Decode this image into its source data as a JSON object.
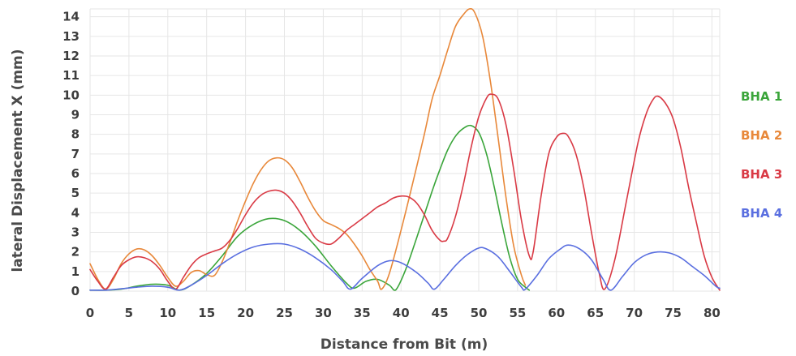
{
  "chart_data": {
    "type": "line",
    "title": "",
    "xlabel": "Distance from Bit (m)",
    "ylabel": "lateral Displacement X (mm)",
    "xlim": [
      0,
      81
    ],
    "ylim": [
      0,
      14.4
    ],
    "xticks": [
      "0",
      "5",
      "10",
      "15",
      "20",
      "25",
      "30",
      "35",
      "40",
      "45",
      "50",
      "55",
      "60",
      "65",
      "70",
      "75",
      "80"
    ],
    "yticks": [
      "0",
      "1",
      "2",
      "3",
      "4",
      "5",
      "6",
      "7",
      "8",
      "9",
      "10",
      "11",
      "12",
      "13",
      "14"
    ],
    "grid": true,
    "legend_position": "right",
    "series": [
      {
        "name": "BHA 1",
        "color": "#3aa53a",
        "points": [
          [
            0,
            0.05
          ],
          [
            2,
            0.05
          ],
          [
            4,
            0.1
          ],
          [
            6,
            0.25
          ],
          [
            8,
            0.35
          ],
          [
            10,
            0.3
          ],
          [
            11.5,
            0.05
          ],
          [
            13,
            0.3
          ],
          [
            15,
            0.9
          ],
          [
            17,
            1.8
          ],
          [
            19,
            2.8
          ],
          [
            21,
            3.4
          ],
          [
            23,
            3.7
          ],
          [
            25,
            3.6
          ],
          [
            27,
            3.1
          ],
          [
            29,
            2.3
          ],
          [
            31,
            1.3
          ],
          [
            33,
            0.4
          ],
          [
            34,
            0.15
          ],
          [
            35.5,
            0.5
          ],
          [
            37,
            0.6
          ],
          [
            38.5,
            0.3
          ],
          [
            39.3,
            0.05
          ],
          [
            40.5,
            1.0
          ],
          [
            42,
            2.7
          ],
          [
            44,
            5.1
          ],
          [
            45,
            6.2
          ],
          [
            46,
            7.2
          ],
          [
            47,
            7.9
          ],
          [
            48,
            8.3
          ],
          [
            49,
            8.45
          ],
          [
            50,
            8.1
          ],
          [
            51,
            7.0
          ],
          [
            52,
            5.3
          ],
          [
            53,
            3.4
          ],
          [
            54,
            1.7
          ],
          [
            55,
            0.6
          ],
          [
            56,
            0.2
          ],
          [
            56.5,
            0.05
          ]
        ]
      },
      {
        "name": "BHA 2",
        "color": "#e8883a",
        "points": [
          [
            0,
            1.4
          ],
          [
            1,
            0.6
          ],
          [
            2,
            0.1
          ],
          [
            3,
            0.6
          ],
          [
            4,
            1.4
          ],
          [
            5,
            1.9
          ],
          [
            6,
            2.15
          ],
          [
            7,
            2.1
          ],
          [
            8,
            1.8
          ],
          [
            9,
            1.3
          ],
          [
            10,
            0.7
          ],
          [
            11,
            0.25
          ],
          [
            12,
            0.5
          ],
          [
            13,
            0.95
          ],
          [
            14,
            1.05
          ],
          [
            15,
            0.85
          ],
          [
            16,
            0.8
          ],
          [
            17,
            1.5
          ],
          [
            18,
            2.5
          ],
          [
            19,
            3.6
          ],
          [
            20,
            4.6
          ],
          [
            21,
            5.5
          ],
          [
            22,
            6.2
          ],
          [
            23,
            6.65
          ],
          [
            24,
            6.8
          ],
          [
            25,
            6.7
          ],
          [
            26,
            6.3
          ],
          [
            27,
            5.6
          ],
          [
            28,
            4.8
          ],
          [
            29,
            4.1
          ],
          [
            30,
            3.6
          ],
          [
            31,
            3.4
          ],
          [
            32,
            3.2
          ],
          [
            33,
            2.9
          ],
          [
            34,
            2.4
          ],
          [
            35,
            1.8
          ],
          [
            36,
            1.1
          ],
          [
            37,
            0.5
          ],
          [
            37.5,
            0.1
          ],
          [
            38.5,
            0.9
          ],
          [
            40,
            3.1
          ],
          [
            41.5,
            5.5
          ],
          [
            43,
            8.0
          ],
          [
            44,
            9.8
          ],
          [
            45,
            11.0
          ],
          [
            46,
            12.3
          ],
          [
            47,
            13.5
          ],
          [
            48,
            14.1
          ],
          [
            48.8,
            14.4
          ],
          [
            49.5,
            14.2
          ],
          [
            50.5,
            13.0
          ],
          [
            51.5,
            10.7
          ],
          [
            52.5,
            7.8
          ],
          [
            53.5,
            4.8
          ],
          [
            54.5,
            2.3
          ],
          [
            55.5,
            0.8
          ],
          [
            56,
            0.3
          ]
        ]
      },
      {
        "name": "BHA 3",
        "color": "#d93a45",
        "points": [
          [
            0,
            1.1
          ],
          [
            1,
            0.5
          ],
          [
            2,
            0.1
          ],
          [
            3,
            0.7
          ],
          [
            4,
            1.3
          ],
          [
            5,
            1.6
          ],
          [
            6,
            1.75
          ],
          [
            7,
            1.7
          ],
          [
            8,
            1.5
          ],
          [
            9,
            1.1
          ],
          [
            10,
            0.5
          ],
          [
            11,
            0.1
          ],
          [
            12,
            0.7
          ],
          [
            13,
            1.3
          ],
          [
            14,
            1.7
          ],
          [
            15,
            1.9
          ],
          [
            16,
            2.05
          ],
          [
            17,
            2.2
          ],
          [
            18,
            2.6
          ],
          [
            19,
            3.2
          ],
          [
            20,
            3.9
          ],
          [
            21,
            4.5
          ],
          [
            22,
            4.9
          ],
          [
            23,
            5.1
          ],
          [
            24,
            5.15
          ],
          [
            25,
            5.0
          ],
          [
            26,
            4.6
          ],
          [
            27,
            4.0
          ],
          [
            28,
            3.3
          ],
          [
            29,
            2.7
          ],
          [
            30,
            2.45
          ],
          [
            31,
            2.4
          ],
          [
            32,
            2.7
          ],
          [
            33,
            3.1
          ],
          [
            34,
            3.4
          ],
          [
            35,
            3.7
          ],
          [
            36,
            4.0
          ],
          [
            37,
            4.3
          ],
          [
            38,
            4.5
          ],
          [
            39,
            4.75
          ],
          [
            40,
            4.85
          ],
          [
            41,
            4.8
          ],
          [
            42,
            4.5
          ],
          [
            43,
            3.9
          ],
          [
            44,
            3.1
          ],
          [
            45,
            2.6
          ],
          [
            45.5,
            2.55
          ],
          [
            46,
            2.7
          ],
          [
            47,
            3.8
          ],
          [
            48,
            5.4
          ],
          [
            49,
            7.3
          ],
          [
            50,
            8.9
          ],
          [
            51,
            9.85
          ],
          [
            51.6,
            10.05
          ],
          [
            52.5,
            9.8
          ],
          [
            53.5,
            8.5
          ],
          [
            54.5,
            6.2
          ],
          [
            55.5,
            3.6
          ],
          [
            56.5,
            1.8
          ],
          [
            57,
            2.0
          ],
          [
            58,
            4.8
          ],
          [
            59,
            7.0
          ],
          [
            60,
            7.85
          ],
          [
            60.8,
            8.05
          ],
          [
            61.5,
            7.9
          ],
          [
            62.5,
            7.0
          ],
          [
            63.5,
            5.3
          ],
          [
            64.5,
            3.0
          ],
          [
            65.5,
            0.9
          ],
          [
            66.2,
            0.1
          ],
          [
            67.5,
            1.6
          ],
          [
            69,
            4.6
          ],
          [
            70.5,
            7.6
          ],
          [
            71.5,
            9.0
          ],
          [
            72.3,
            9.7
          ],
          [
            73,
            9.95
          ],
          [
            74,
            9.6
          ],
          [
            75,
            8.8
          ],
          [
            76,
            7.3
          ],
          [
            77,
            5.3
          ],
          [
            78,
            3.5
          ],
          [
            79,
            1.8
          ],
          [
            80,
            0.7
          ],
          [
            81,
            0.05
          ]
        ]
      },
      {
        "name": "BHA 4",
        "color": "#5a6fe0",
        "points": [
          [
            0,
            0.05
          ],
          [
            2,
            0.05
          ],
          [
            4,
            0.12
          ],
          [
            6,
            0.2
          ],
          [
            8,
            0.25
          ],
          [
            10,
            0.2
          ],
          [
            11.5,
            0.05
          ],
          [
            13,
            0.3
          ],
          [
            15,
            0.8
          ],
          [
            17,
            1.4
          ],
          [
            19,
            1.9
          ],
          [
            21,
            2.25
          ],
          [
            23,
            2.4
          ],
          [
            25,
            2.4
          ],
          [
            27,
            2.15
          ],
          [
            29,
            1.7
          ],
          [
            31,
            1.1
          ],
          [
            32.5,
            0.5
          ],
          [
            33.5,
            0.1
          ],
          [
            35,
            0.65
          ],
          [
            37,
            1.3
          ],
          [
            38.5,
            1.55
          ],
          [
            40,
            1.45
          ],
          [
            42,
            0.95
          ],
          [
            43.5,
            0.4
          ],
          [
            44.3,
            0.1
          ],
          [
            45.5,
            0.6
          ],
          [
            47,
            1.3
          ],
          [
            48.5,
            1.85
          ],
          [
            50,
            2.2
          ],
          [
            51,
            2.15
          ],
          [
            52.5,
            1.75
          ],
          [
            54,
            1.0
          ],
          [
            55.5,
            0.2
          ],
          [
            56,
            0.1
          ],
          [
            57.5,
            0.8
          ],
          [
            59,
            1.65
          ],
          [
            60.5,
            2.15
          ],
          [
            61.5,
            2.35
          ],
          [
            63,
            2.15
          ],
          [
            64.5,
            1.6
          ],
          [
            66,
            0.6
          ],
          [
            67,
            0.05
          ],
          [
            68.5,
            0.75
          ],
          [
            70,
            1.45
          ],
          [
            71.5,
            1.85
          ],
          [
            73,
            2.0
          ],
          [
            74.5,
            1.95
          ],
          [
            76,
            1.7
          ],
          [
            77.5,
            1.25
          ],
          [
            79,
            0.8
          ],
          [
            80.5,
            0.25
          ],
          [
            81,
            0.15
          ]
        ]
      }
    ]
  }
}
